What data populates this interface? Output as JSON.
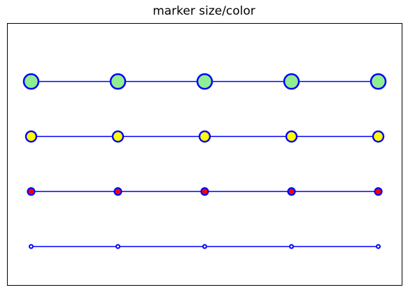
{
  "chart_data": {
    "type": "line",
    "title": "marker size/color",
    "xlabel": "",
    "ylabel": "",
    "xlim": [
      -0.27,
      4.27
    ],
    "ylim": [
      -0.7,
      4.05
    ],
    "grid": false,
    "axis_ticks": false,
    "line_color": "#0000ff",
    "marker_edge_color": "#0000ff",
    "x": [
      0,
      1,
      2,
      3,
      4
    ],
    "series": [
      {
        "values": [
          0,
          0,
          0,
          0,
          0
        ],
        "marker": "circle",
        "marker_size": "small",
        "face_color": "#ffffff"
      },
      {
        "values": [
          1,
          1,
          1,
          1,
          1
        ],
        "marker": "circle",
        "marker_size": "medium",
        "face_color": "#ff0000"
      },
      {
        "values": [
          2,
          2,
          2,
          2,
          2
        ],
        "marker": "circle",
        "marker_size": "large",
        "face_color": "#ffff00"
      },
      {
        "values": [
          3,
          3,
          3,
          3,
          3
        ],
        "marker": "circle",
        "marker_size": "x-large",
        "face_color": "#90ee90"
      }
    ]
  }
}
